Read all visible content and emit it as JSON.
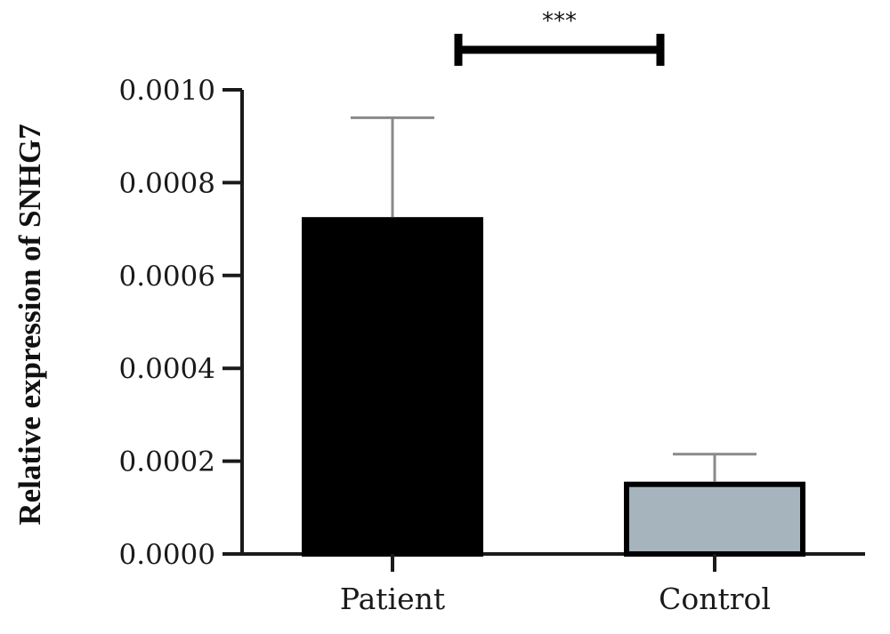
{
  "chart_data": {
    "type": "bar",
    "categories": [
      "Patient",
      "Control"
    ],
    "values": [
      0.00072,
      0.00015
    ],
    "errors": [
      0.00022,
      6.5e-05
    ],
    "colors": [
      "#000000",
      "#a5b4bd"
    ],
    "error_colors": [
      "#8a8a8a",
      "#8a8a8a"
    ],
    "ylabel": "Relative expression of SNHG7",
    "xlabel": "",
    "ylim": [
      0,
      0.001
    ],
    "yticks": [
      "0.0000",
      "0.0002",
      "0.0004",
      "0.0006",
      "0.0008",
      "0.0010"
    ],
    "significance": {
      "label": "***",
      "between": [
        "Patient",
        "Control"
      ]
    },
    "grid": false,
    "legend": "none"
  }
}
